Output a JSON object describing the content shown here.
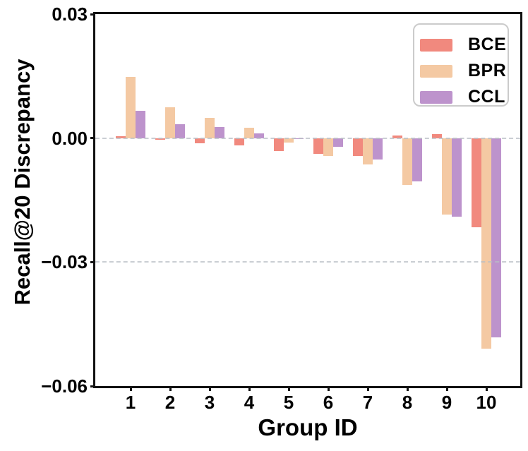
{
  "figure": {
    "background": "#ffffff",
    "frame_color": "#111111"
  },
  "chart_data": {
    "type": "bar",
    "title": "",
    "xlabel": "Group ID",
    "ylabel": "Recall@20 Discrepancy",
    "categories": [
      "1",
      "2",
      "3",
      "4",
      "5",
      "6",
      "7",
      "8",
      "9",
      "10"
    ],
    "series": [
      {
        "name": "BCE",
        "color": "#F1897E",
        "values": [
          0.0005,
          -0.0004,
          -0.0013,
          -0.0017,
          -0.0031,
          -0.0038,
          -0.0043,
          0.0007,
          0.0009,
          -0.0215
        ]
      },
      {
        "name": "BPR",
        "color": "#F4C9A3",
        "values": [
          0.0148,
          0.0075,
          0.0049,
          0.0025,
          -0.001,
          -0.0043,
          -0.0063,
          -0.0114,
          -0.0185,
          -0.051
        ]
      },
      {
        "name": "CCL",
        "color": "#BD93CC",
        "values": [
          0.0066,
          0.0033,
          0.0027,
          0.0011,
          -0.0002,
          -0.0021,
          -0.0052,
          -0.0104,
          -0.019,
          -0.0483
        ]
      }
    ],
    "ylim": [
      -0.06,
      0.03
    ],
    "y_ticks": {
      "values": [
        0.03,
        0.0,
        -0.03,
        -0.06
      ],
      "labels": [
        "0.03",
        "0.00",
        "−0.03",
        "−0.06"
      ]
    },
    "gridlines": {
      "values": [
        0.0,
        -0.03
      ],
      "style": "dashed",
      "color": "#b8bec4"
    },
    "legend": {
      "position": "upper right",
      "entries": [
        "BCE",
        "BPR",
        "CCL"
      ]
    }
  }
}
